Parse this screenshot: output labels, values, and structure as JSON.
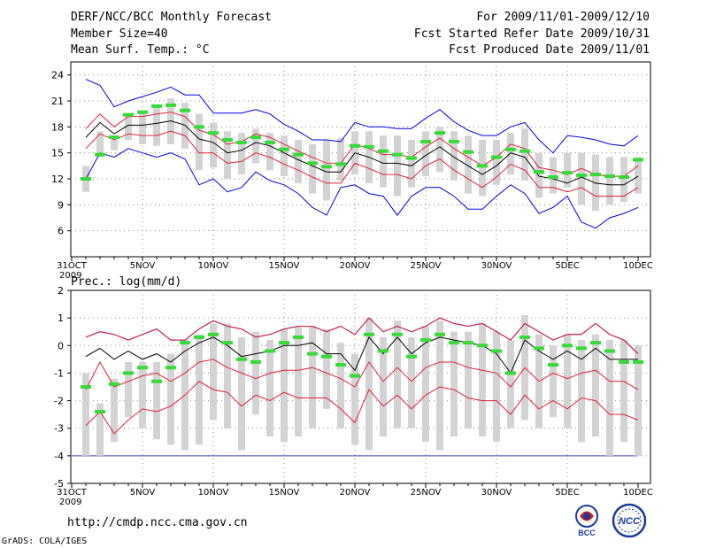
{
  "header": {
    "title": "DERF/NCC/BCC Monthly Forecast",
    "member_size": "Member Size=40",
    "variable": "Mean Surf. Temp.: °C",
    "period": "For 2009/11/01-2009/12/10",
    "started": "Fcst Started Refer Date 2009/10/31",
    "produced": "Fcst Produced Date 2009/11/01"
  },
  "footer": {
    "url": "http://cmdp.ncc.cma.gov.cn",
    "credit": "GrADS: COLA/IGES",
    "bcc_logo_text": "BCC",
    "ncc_logo_text": "NCC"
  },
  "colors": {
    "box": "#d3d3d3",
    "mean": "#000000",
    "sd": "#e0203a",
    "extreme": "#0000e0",
    "obs": "#33dd33",
    "baseline": "#4040c0"
  },
  "chart_data": [
    {
      "type": "box-ensemble",
      "title": "Mean Surf. Temp.: °C",
      "xlabel": "",
      "ylabel": "°C",
      "xlim": [
        0,
        40
      ],
      "ylim": [
        3,
        25.5
      ],
      "yticks": [
        6,
        9,
        12,
        15,
        18,
        21,
        24
      ],
      "xtick_labels": [
        "31OCT",
        "5NOV",
        "10NOV",
        "15NOV",
        "20NOV",
        "25NOV",
        "30NOV",
        "5DEC",
        "10DEC"
      ],
      "xtick_pos": [
        0,
        5,
        10,
        15,
        20,
        25,
        30,
        35,
        40
      ],
      "year_label": "2009",
      "days": [
        1,
        2,
        3,
        4,
        5,
        6,
        7,
        8,
        9,
        10,
        11,
        12,
        13,
        14,
        15,
        16,
        17,
        18,
        19,
        20,
        21,
        22,
        23,
        24,
        25,
        26,
        27,
        28,
        29,
        30,
        31,
        32,
        33,
        34,
        35,
        36,
        37,
        38,
        39,
        40
      ],
      "mean": [
        16.8,
        18.5,
        17.2,
        18.2,
        18.2,
        18.4,
        18.7,
        18.2,
        16.6,
        16.2,
        15.0,
        15.3,
        16.2,
        15.8,
        15.0,
        14.2,
        13.5,
        12.8,
        12.8,
        15.0,
        14.5,
        13.8,
        13.8,
        13.5,
        14.7,
        15.7,
        14.5,
        13.5,
        12.5,
        13.5,
        15.0,
        14.5,
        12.3,
        12.0,
        11.5,
        12.2,
        11.5,
        11.3,
        11.3,
        12.3
      ],
      "upper_sd": [
        17.8,
        19.5,
        18.0,
        19.2,
        19.2,
        19.5,
        19.7,
        19.2,
        17.6,
        17.1,
        16.0,
        16.3,
        17.2,
        16.8,
        16.0,
        15.2,
        14.5,
        13.8,
        13.8,
        16.0,
        15.5,
        14.8,
        14.8,
        14.5,
        15.7,
        16.7,
        15.5,
        14.5,
        13.5,
        14.5,
        16.0,
        15.5,
        13.3,
        13.0,
        12.5,
        13.2,
        12.5,
        12.3,
        12.3,
        13.5
      ],
      "lower_sd": [
        15.5,
        17.2,
        16.5,
        17.2,
        17.0,
        17.0,
        17.5,
        17.0,
        15.0,
        15.0,
        13.8,
        14.0,
        15.0,
        14.5,
        13.7,
        13.0,
        12.2,
        11.5,
        11.5,
        13.8,
        13.2,
        12.5,
        12.5,
        12.0,
        13.5,
        14.3,
        13.0,
        12.0,
        11.0,
        12.2,
        13.7,
        13.0,
        11.0,
        11.0,
        10.5,
        11.0,
        10.0,
        10.0,
        10.0,
        11.0
      ],
      "max": [
        23.5,
        22.8,
        20.3,
        21.0,
        21.5,
        22.0,
        22.6,
        21.7,
        21.7,
        19.6,
        19.6,
        19.6,
        20.0,
        19.5,
        18.3,
        17.5,
        16.5,
        16.5,
        16.3,
        18.5,
        18.0,
        18.0,
        17.8,
        17.8,
        19.0,
        20.0,
        18.6,
        17.6,
        17.0,
        17.0,
        18.0,
        18.5,
        16.5,
        15.0,
        17.0,
        16.8,
        16.5,
        16.0,
        15.8,
        17.0
      ],
      "min": [
        12.0,
        15.0,
        14.5,
        15.5,
        15.0,
        14.5,
        15.0,
        14.3,
        11.3,
        12.0,
        10.5,
        11.0,
        12.8,
        11.8,
        11.3,
        10.3,
        8.7,
        7.8,
        11.0,
        11.3,
        10.3,
        10.0,
        7.8,
        10.0,
        11.0,
        11.0,
        10.0,
        8.5,
        8.5,
        10.0,
        11.3,
        10.3,
        8.0,
        8.7,
        10.0,
        7.0,
        6.3,
        7.5,
        8.0,
        8.7
      ],
      "box_top": [
        13.5,
        17.5,
        16.5,
        19.5,
        19.8,
        20.5,
        21.3,
        20.8,
        19.5,
        18.5,
        17.5,
        17.3,
        17.8,
        17.3,
        17.0,
        16.5,
        16.0,
        16.5,
        16.7,
        17.5,
        17.5,
        17.0,
        17.0,
        16.5,
        17.5,
        18.0,
        17.5,
        17.0,
        16.5,
        16.5,
        17.3,
        17.8,
        15.0,
        14.5,
        15.0,
        15.0,
        14.8,
        14.5,
        14.5,
        14.5
      ],
      "box_bottom": [
        10.5,
        14.5,
        15.3,
        16.5,
        16.0,
        15.8,
        16.0,
        15.5,
        13.0,
        13.3,
        12.0,
        12.5,
        13.8,
        13.0,
        12.3,
        11.5,
        10.3,
        9.5,
        11.8,
        12.5,
        11.5,
        11.0,
        10.0,
        11.0,
        12.3,
        12.8,
        11.8,
        10.3,
        10.0,
        11.3,
        12.5,
        11.8,
        9.8,
        10.3,
        11.0,
        9.0,
        8.3,
        9.0,
        9.3,
        10.3
      ],
      "obs": [
        12.0,
        14.8,
        16.8,
        19.4,
        19.7,
        20.4,
        20.5,
        19.9,
        18.0,
        17.3,
        16.5,
        16.2,
        16.8,
        16.2,
        15.4,
        14.8,
        13.8,
        13.4,
        13.7,
        15.8,
        15.7,
        15.2,
        14.8,
        14.4,
        16.3,
        17.3,
        16.3,
        15.1,
        13.5,
        14.5,
        15.4,
        15.2,
        12.8,
        12.2,
        12.7,
        12.4,
        12.5,
        12.3,
        12.2,
        14.2
      ]
    },
    {
      "type": "box-ensemble",
      "title": "Prec.: log(mm/d)",
      "xlabel": "",
      "ylabel": "log(mm/d)",
      "xlim": [
        0,
        40
      ],
      "ylim": [
        -5,
        2
      ],
      "yticks": [
        -5,
        -4,
        -3,
        -2,
        -1,
        0,
        1,
        2
      ],
      "xtick_labels": [
        "31OCT",
        "5NOV",
        "10NOV",
        "15NOV",
        "20NOV",
        "25NOV",
        "30NOV",
        "5DEC",
        "10DEC"
      ],
      "xtick_pos": [
        0,
        5,
        10,
        15,
        20,
        25,
        30,
        35,
        40
      ],
      "year_label": "2009",
      "baseline": -4,
      "days": [
        1,
        2,
        3,
        4,
        5,
        6,
        7,
        8,
        9,
        10,
        11,
        12,
        13,
        14,
        15,
        16,
        17,
        18,
        19,
        20,
        21,
        22,
        23,
        24,
        25,
        26,
        27,
        28,
        29,
        30,
        31,
        32,
        33,
        34,
        35,
        36,
        37,
        38,
        39,
        40
      ],
      "mean": [
        -0.4,
        -0.1,
        -0.5,
        -0.2,
        -0.5,
        -0.3,
        -0.6,
        -0.2,
        0.1,
        0.3,
        0.0,
        -0.4,
        -0.3,
        -0.2,
        0.0,
        0.0,
        0.1,
        -0.3,
        -0.3,
        -0.9,
        0.3,
        -0.3,
        0.3,
        -0.3,
        0.1,
        0.3,
        0.2,
        0.1,
        0.0,
        -0.3,
        -1.0,
        0.2,
        -0.2,
        -0.5,
        -0.2,
        -0.5,
        -0.1,
        -0.5,
        -0.5,
        -0.5
      ],
      "upper_sd": [
        0.3,
        0.5,
        0.4,
        0.2,
        0.4,
        0.6,
        0.2,
        0.2,
        0.6,
        0.9,
        0.7,
        0.6,
        0.3,
        0.4,
        0.6,
        0.7,
        0.7,
        0.5,
        0.7,
        0.4,
        1.0,
        0.5,
        0.7,
        0.5,
        0.7,
        1.0,
        0.8,
        0.7,
        0.8,
        0.5,
        0.2,
        0.8,
        0.5,
        0.2,
        0.4,
        0.4,
        0.8,
        0.4,
        0.2,
        -0.3
      ],
      "lower_sd": [
        -1.6,
        -0.6,
        -1.5,
        -1.3,
        -1.1,
        -1.0,
        -1.3,
        -1.0,
        -0.6,
        -0.5,
        -0.8,
        -1.0,
        -1.2,
        -1.0,
        -0.9,
        -0.9,
        -0.8,
        -1.0,
        -1.2,
        -1.5,
        -0.6,
        -1.3,
        -0.8,
        -1.3,
        -0.8,
        -0.6,
        -0.6,
        -0.8,
        -0.9,
        -1.0,
        -1.5,
        -0.8,
        -1.3,
        -1.0,
        -1.2,
        -1.0,
        -0.9,
        -1.3,
        -1.3,
        -1.6
      ],
      "max": [
        0.3,
        0.5,
        0.4,
        0.2,
        0.4,
        0.6,
        0.2,
        0.2,
        0.6,
        0.9,
        0.7,
        0.6,
        0.3,
        0.4,
        0.6,
        0.7,
        0.7,
        0.5,
        0.7,
        0.4,
        1.0,
        0.5,
        0.7,
        0.5,
        0.7,
        1.0,
        0.8,
        0.7,
        0.8,
        0.5,
        0.2,
        0.8,
        0.5,
        0.2,
        0.4,
        0.4,
        0.8,
        0.4,
        0.2,
        -0.3
      ],
      "min": [
        -2.9,
        -2.4,
        -3.2,
        -2.7,
        -2.3,
        -2.4,
        -2.2,
        -1.8,
        -1.3,
        -1.6,
        -1.7,
        -2.2,
        -1.8,
        -2.0,
        -1.7,
        -1.9,
        -1.9,
        -1.9,
        -2.3,
        -2.8,
        -1.6,
        -2.2,
        -1.8,
        -2.3,
        -1.8,
        -1.5,
        -1.6,
        -1.9,
        -2.0,
        -2.0,
        -2.5,
        -1.8,
        -2.3,
        -2.0,
        -2.3,
        -1.9,
        -2.0,
        -2.5,
        -2.5,
        -2.7
      ],
      "box_top": [
        -1.0,
        -2.1,
        -1.2,
        -0.6,
        -0.6,
        -0.6,
        -0.3,
        0.2,
        0.4,
        0.8,
        0.8,
        0.3,
        0.5,
        0.2,
        0.6,
        0.7,
        0.7,
        0.6,
        0.1,
        -0.3,
        1.0,
        0.3,
        0.9,
        0.3,
        0.7,
        0.9,
        0.5,
        0.5,
        0.8,
        0.5,
        0.2,
        1.1,
        0.4,
        0.0,
        0.4,
        0.2,
        0.4,
        0.2,
        0.2,
        0.0
      ],
      "box_bottom": [
        -4.0,
        -4.0,
        -3.5,
        -2.6,
        -3.0,
        -3.4,
        -3.6,
        -3.8,
        -3.6,
        -2.7,
        -3.0,
        -3.8,
        -2.5,
        -3.3,
        -3.5,
        -3.3,
        -3.0,
        -2.3,
        -3.0,
        -3.6,
        -3.8,
        -3.3,
        -3.0,
        -3.0,
        -3.5,
        -3.8,
        -3.3,
        -3.0,
        -3.3,
        -3.5,
        -3.0,
        -2.7,
        -3.0,
        -2.6,
        -3.0,
        -3.5,
        -3.3,
        -4.0,
        -3.5,
        -4.0
      ],
      "obs": [
        -1.5,
        -2.4,
        -1.4,
        -1.0,
        -0.8,
        -1.3,
        -0.8,
        0.1,
        0.3,
        0.4,
        0.1,
        -0.5,
        -0.6,
        -0.2,
        0.1,
        0.3,
        -0.3,
        -0.4,
        -0.7,
        -1.1,
        0.4,
        -0.2,
        0.4,
        -0.4,
        0.2,
        0.4,
        0.1,
        0.1,
        -0.0,
        -0.2,
        -1.0,
        0.3,
        -0.1,
        -0.7,
        -0.0,
        -0.1,
        0.1,
        -0.2,
        -0.6,
        -0.6
      ]
    }
  ],
  "axis_labels": {
    "temp_label": "",
    "prec_label": "Prec.: log(mm/d)"
  }
}
